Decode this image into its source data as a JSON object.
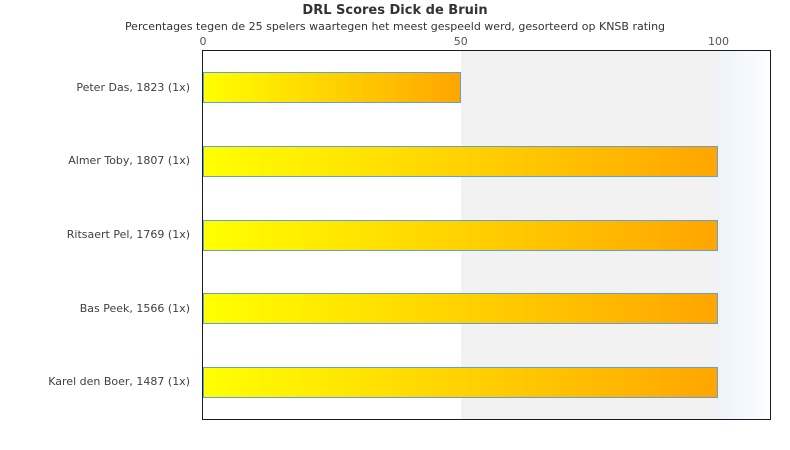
{
  "chart_data": {
    "type": "bar",
    "orientation": "horizontal",
    "title": "DRL Scores Dick de Bruin",
    "subtitle": "Percentages tegen de 25 spelers waartegen het meest gespeeld werd, gesorteerd op KNSB rating",
    "categories": [
      "Peter Das, 1823 (1x)",
      "Almer Toby, 1807 (1x)",
      "Ritsaert Pel, 1769 (1x)",
      "Bas Peek, 1566 (1x)",
      "Karel den Boer, 1487 (1x)"
    ],
    "values": [
      50,
      100,
      100,
      100,
      100
    ],
    "xlabel": "",
    "ylabel": "",
    "xlim": [
      0,
      110
    ],
    "xticks": [
      0,
      50,
      100
    ],
    "legend": "none",
    "grid": "off",
    "band_range": [
      50,
      100
    ],
    "colors": {
      "bar_gradient_start": "#ffff00",
      "bar_gradient_end": "#ffa500",
      "bar_border": "#61a0d8",
      "band_fill": "#f2f2f2",
      "plot_border": "#1a1a1a",
      "title_text": "#333333",
      "tick_text": "#555555",
      "category_text": "#404040"
    }
  }
}
